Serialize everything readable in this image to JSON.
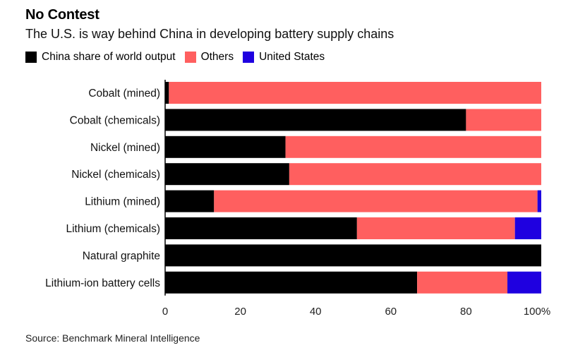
{
  "header": {
    "title": "No Contest",
    "subtitle": "The U.S. is way behind China in developing battery supply chains"
  },
  "legend": [
    {
      "label": "China share of world output",
      "color": "#000000"
    },
    {
      "label": "Others",
      "color": "#ff5f5f"
    },
    {
      "label": "United States",
      "color": "#1f00e0"
    }
  ],
  "chart_data": {
    "type": "bar",
    "orientation": "horizontal",
    "stacked": true,
    "categories": [
      "Cobalt (mined)",
      "Cobalt (chemicals)",
      "Nickel (mined)",
      "Nickel (chemicals)",
      "Lithium (mined)",
      "Lithium (chemicals)",
      "Natural graphite",
      "Lithium-ion battery cells"
    ],
    "series": [
      {
        "name": "China share of world output",
        "color": "#000000",
        "values": [
          1,
          80,
          32,
          33,
          13,
          51,
          100,
          67
        ]
      },
      {
        "name": "Others",
        "color": "#ff5f5f",
        "values": [
          99,
          20,
          68,
          67,
          86,
          42,
          0,
          24
        ]
      },
      {
        "name": "United States",
        "color": "#1f00e0",
        "values": [
          0,
          0,
          0,
          0,
          1,
          7,
          0,
          9
        ]
      }
    ],
    "xlim": [
      0,
      100
    ],
    "xticks": [
      0,
      20,
      40,
      60,
      80,
      100
    ],
    "xtick_labels": [
      "0",
      "20",
      "40",
      "60",
      "80",
      "100%"
    ],
    "grid": false,
    "legend_position": "top-left"
  },
  "source": "Source: Benchmark Mineral Intelligence"
}
